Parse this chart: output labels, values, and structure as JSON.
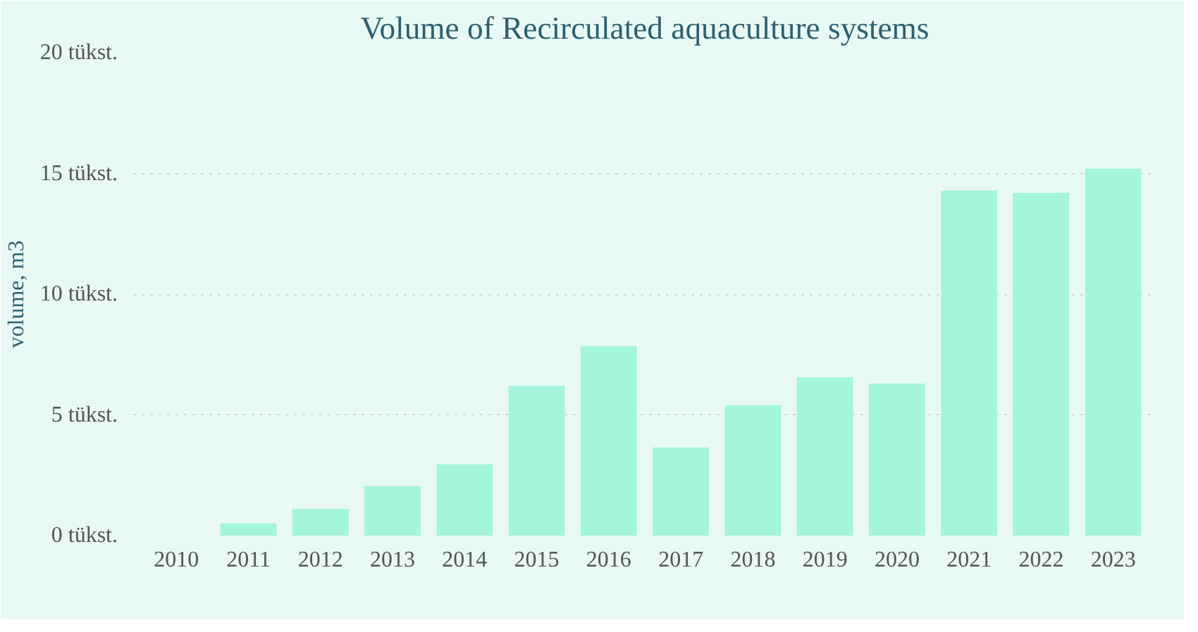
{
  "chart_data": {
    "type": "bar",
    "title": "Volume of Recirculated aquaculture systems",
    "ylabel": "volume, m3",
    "categories": [
      "2010",
      "2011",
      "2012",
      "2013",
      "2014",
      "2015",
      "2016",
      "2017",
      "2018",
      "2019",
      "2020",
      "2021",
      "2022",
      "2023"
    ],
    "values": [
      0,
      0.5,
      1.1,
      2.05,
      2.95,
      6.2,
      7.85,
      3.65,
      5.4,
      6.55,
      6.3,
      14.3,
      14.2,
      15.2
    ],
    "color": "#a3f5dc",
    "ylim": [
      0,
      20
    ],
    "yticks": [
      {
        "value": 0,
        "label": "0 tükst."
      },
      {
        "value": 5,
        "label": "5 tükst."
      },
      {
        "value": 10,
        "label": "10 tükst."
      },
      {
        "value": 15,
        "label": "15 tükst."
      },
      {
        "value": 20,
        "label": "20 tükst."
      }
    ],
    "grid": "y"
  }
}
